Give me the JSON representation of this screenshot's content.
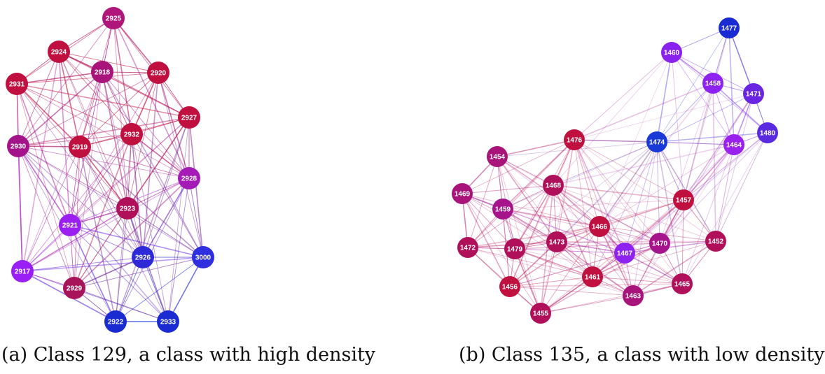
{
  "graphs": [
    {
      "caption": "(a) Class 129, a class with high density",
      "nodes": [
        {
          "id": "2925",
          "color": "#b0157a"
        },
        {
          "id": "2924",
          "color": "#c0103f"
        },
        {
          "id": "2918",
          "color": "#a8147a"
        },
        {
          "id": "2920",
          "color": "#c0103f"
        },
        {
          "id": "2931",
          "color": "#c0103f"
        },
        {
          "id": "2927",
          "color": "#c0103f"
        },
        {
          "id": "2932",
          "color": "#c0103f"
        },
        {
          "id": "2930",
          "color": "#a3148a"
        },
        {
          "id": "2919",
          "color": "#c0103f"
        },
        {
          "id": "2928",
          "color": "#a51bb5"
        },
        {
          "id": "2923",
          "color": "#b0105a"
        },
        {
          "id": "2921",
          "color": "#9b1ff0"
        },
        {
          "id": "2926",
          "color": "#2e2ad8"
        },
        {
          "id": "3000",
          "color": "#2f2fe0"
        },
        {
          "id": "2917",
          "color": "#9a1ff5"
        },
        {
          "id": "2929",
          "color": "#a8145a"
        },
        {
          "id": "2922",
          "color": "#1a2bd2"
        },
        {
          "id": "2933",
          "color": "#1a2bd2"
        }
      ]
    },
    {
      "caption": "(b) Class 135, a class with low density",
      "nodes": [
        {
          "id": "1477",
          "color": "#1a2bd2"
        },
        {
          "id": "1460",
          "color": "#8a22ee"
        },
        {
          "id": "1458",
          "color": "#8e22f0"
        },
        {
          "id": "1471",
          "color": "#6a25e0"
        },
        {
          "id": "1480",
          "color": "#5a2ae0"
        },
        {
          "id": "1474",
          "color": "#1a3ad8"
        },
        {
          "id": "1464",
          "color": "#9a20ee"
        },
        {
          "id": "1476",
          "color": "#c0103f"
        },
        {
          "id": "1454",
          "color": "#a8147a"
        },
        {
          "id": "1468",
          "color": "#b0105a"
        },
        {
          "id": "1469",
          "color": "#a8147a"
        },
        {
          "id": "1459",
          "color": "#a5148a"
        },
        {
          "id": "1457",
          "color": "#c0103f"
        },
        {
          "id": "1466",
          "color": "#c0103f"
        },
        {
          "id": "1472",
          "color": "#b0105a"
        },
        {
          "id": "1479",
          "color": "#b0105a"
        },
        {
          "id": "1473",
          "color": "#b0105a"
        },
        {
          "id": "1467",
          "color": "#8e22f0"
        },
        {
          "id": "1470",
          "color": "#a5148a"
        },
        {
          "id": "1452",
          "color": "#b0105a"
        },
        {
          "id": "1456",
          "color": "#c0103f"
        },
        {
          "id": "1461",
          "color": "#c0103f"
        },
        {
          "id": "1465",
          "color": "#b0105a"
        },
        {
          "id": "1463",
          "color": "#a8147a"
        },
        {
          "id": "1455",
          "color": "#b0105a"
        }
      ]
    }
  ]
}
